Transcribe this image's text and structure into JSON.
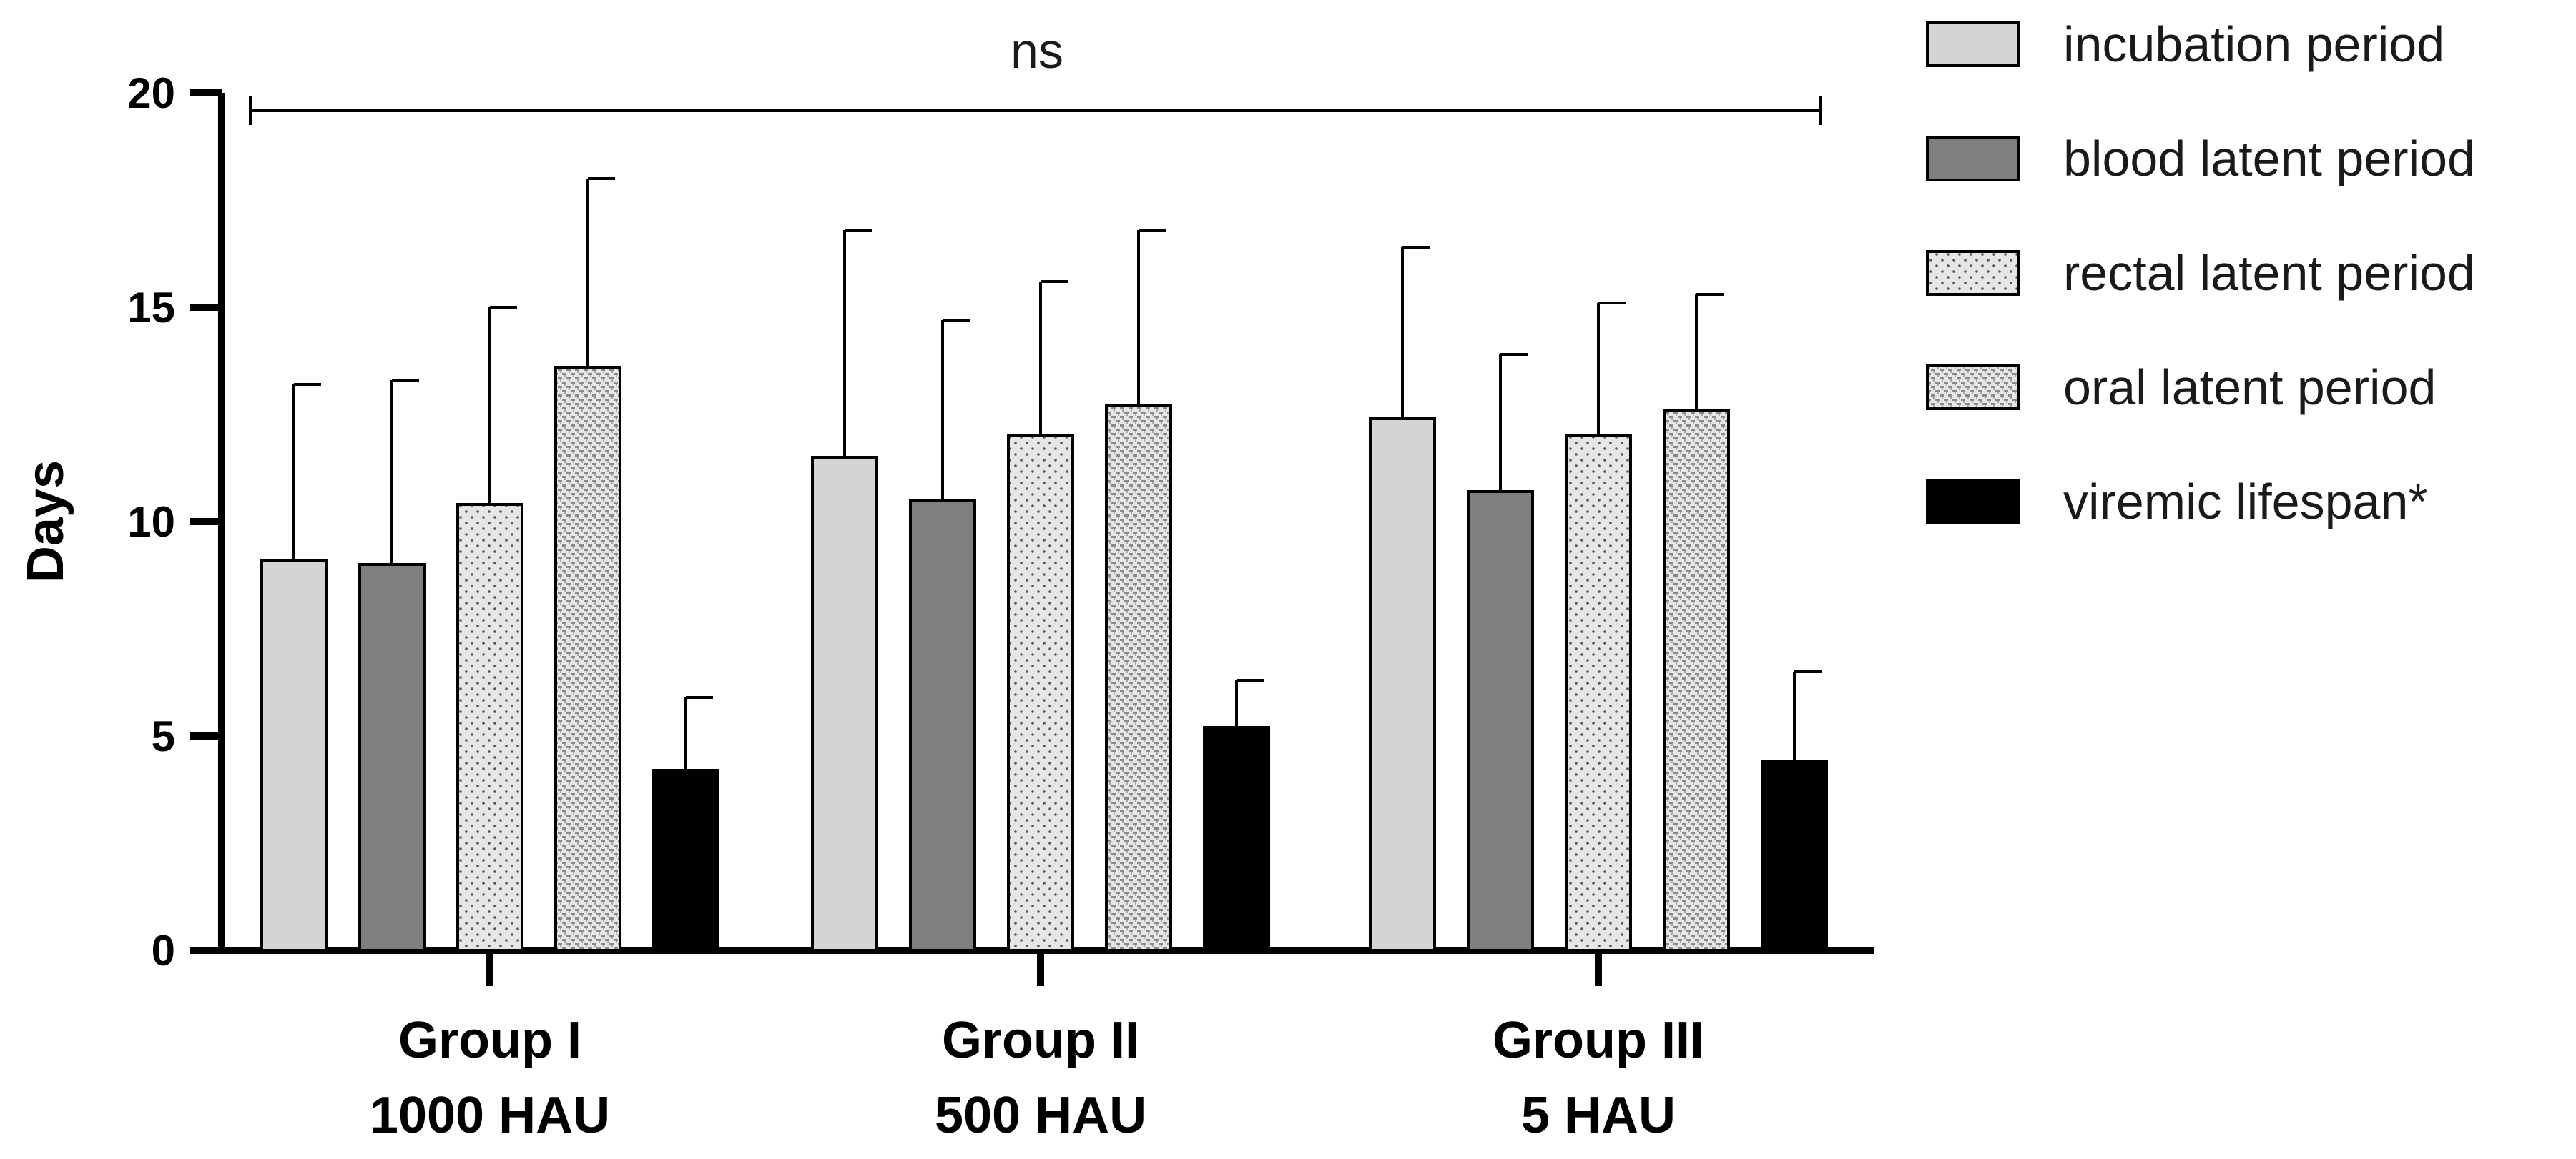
{
  "chart_data": {
    "type": "bar",
    "title": "",
    "xlabel": "",
    "ylabel": "Days",
    "ylim": [
      0,
      20
    ],
    "yticks": [
      "0",
      "5",
      "10",
      "15",
      "20"
    ],
    "categories": [
      [
        "Group I",
        "1000 HAU"
      ],
      [
        "Group II",
        "500 HAU"
      ],
      [
        "Group III",
        "5 HAU"
      ]
    ],
    "series": [
      {
        "name": "incubation period",
        "pattern": "solid-light",
        "values": [
          9.1,
          11.5,
          12.4
        ],
        "errors": [
          4.1,
          5.3,
          4.0
        ]
      },
      {
        "name": "blood latent period",
        "pattern": "solid-dark",
        "values": [
          9.0,
          10.5,
          10.7
        ],
        "errors": [
          4.3,
          4.2,
          3.2
        ]
      },
      {
        "name": "rectal latent period",
        "pattern": "dots",
        "values": [
          10.4,
          12.0,
          12.0
        ],
        "errors": [
          4.6,
          3.6,
          3.1
        ]
      },
      {
        "name": "oral latent period",
        "pattern": "checker",
        "values": [
          13.6,
          12.7,
          12.6
        ],
        "errors": [
          4.4,
          4.1,
          2.7
        ]
      },
      {
        "name": "viremic lifespan*",
        "pattern": "solid-black",
        "values": [
          4.2,
          5.2,
          4.4
        ],
        "errors": [
          1.7,
          1.1,
          2.1
        ]
      }
    ],
    "legend_position": "right",
    "annotation": {
      "text": "ns",
      "type": "bracket-across-all-groups"
    }
  },
  "colors": {
    "incubation": "#d4d4d4",
    "blood": "#7f7f7f",
    "pattern_bg": "#e6e6e6",
    "black": "#000000"
  }
}
